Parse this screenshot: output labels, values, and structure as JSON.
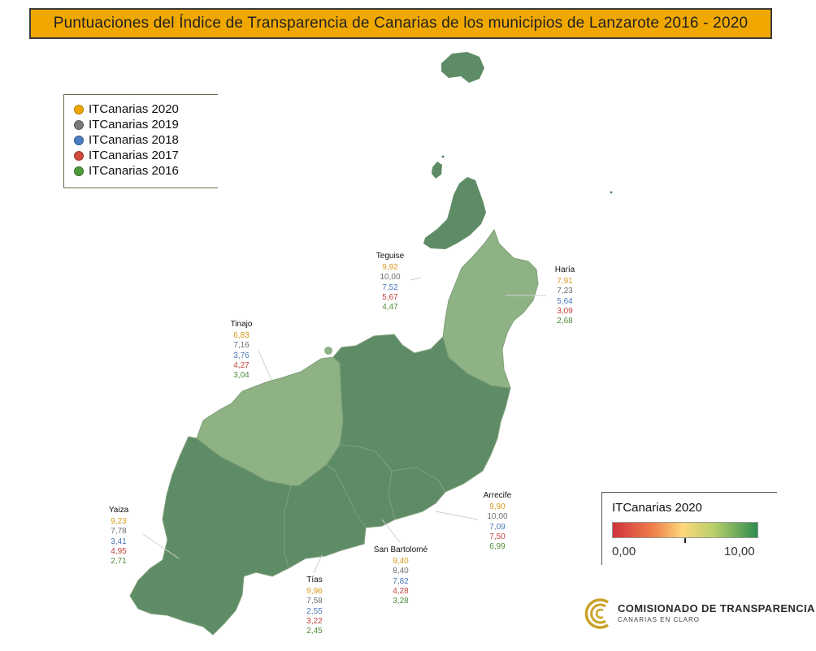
{
  "title": "Puntuaciones del Índice de Transparencia de Canarias de los municipios de Lanzarote 2016 - 2020",
  "legend": {
    "items": [
      {
        "label": "ITCanarias 2020",
        "color": "#f0a800"
      },
      {
        "label": "ITCanarias 2019",
        "color": "#7a7a7a"
      },
      {
        "label": "ITCanarias 2018",
        "color": "#4a7cc0"
      },
      {
        "label": "ITCanarias 2017",
        "color": "#d04a3e"
      },
      {
        "label": "ITCanarias 2016",
        "color": "#4f9a3a"
      }
    ]
  },
  "municipalities": [
    {
      "name": "Teguise",
      "v2020": "9,92",
      "v2019": "10,00",
      "v2018": "7,52",
      "v2017": "5,67",
      "v2016": "4,47"
    },
    {
      "name": "Haría",
      "v2020": "7,91",
      "v2019": "7,23",
      "v2018": "5,64",
      "v2017": "3,09",
      "v2016": "2,68"
    },
    {
      "name": "Tinajo",
      "v2020": "6,83",
      "v2019": "7,16",
      "v2018": "3,76",
      "v2017": "4,27",
      "v2016": "3,04"
    },
    {
      "name": "Yaiza",
      "v2020": "9,23",
      "v2019": "7,78",
      "v2018": "3,41",
      "v2017": "4,95",
      "v2016": "2,71"
    },
    {
      "name": "Tías",
      "v2020": "9,96",
      "v2019": "7,58",
      "v2018": "2,55",
      "v2017": "3,22",
      "v2016": "2,45"
    },
    {
      "name": "San Bartolomé",
      "v2020": "9,40",
      "v2019": "8,40",
      "v2018": "7,82",
      "v2017": "4,28",
      "v2016": "3,28"
    },
    {
      "name": "Arrecife",
      "v2020": "9,90",
      "v2019": "10,00",
      "v2018": "7,09",
      "v2017": "7,50",
      "v2016": "6,99"
    }
  ],
  "colorbar": {
    "title": "ITCanarias 2020",
    "min_label": "0,00",
    "max_label": "10,00",
    "colors": [
      "#d1323d",
      "#fdd77a",
      "#2e8b4f"
    ]
  },
  "map_colors": {
    "dark_green": "#5e8c66",
    "light_green": "#8fb285",
    "border": "#7fa07a"
  },
  "logo": {
    "line1": "COMISIONADO DE TRANSPARENCIA",
    "line2": "CANARIAS EN CLARO",
    "color": "#c9a227"
  }
}
